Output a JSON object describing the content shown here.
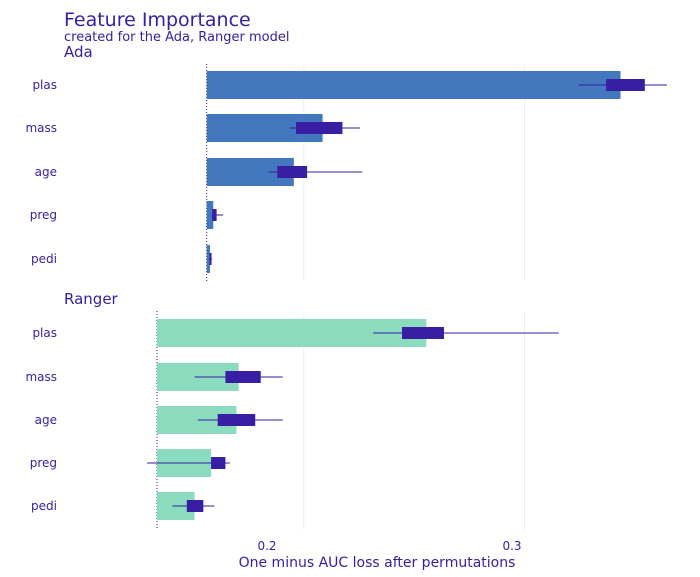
{
  "chart_data": {
    "type": "bar",
    "title": "Feature Importance",
    "subtitle": "created for the Ada, Ranger model",
    "xlabel": "One minus AUC loss after permutations",
    "x_ticks": [
      "0.2",
      "0.3"
    ],
    "grid": true,
    "bar_orientation": "horizontal",
    "categories": [
      "plas",
      "mass",
      "age",
      "preg",
      "pedi"
    ],
    "panels": [
      {
        "name": "Ada",
        "color": "#4378bf",
        "baseline": 0.156,
        "xlim": [
          0.095,
          0.365
        ],
        "values": [
          0.3435,
          0.2085,
          0.1955,
          0.159,
          0.1575
        ],
        "box_low": [
          0.337,
          0.1965,
          0.188,
          0.1585,
          0.1573
        ],
        "box_high": [
          0.3545,
          0.2175,
          0.2015,
          0.1605,
          0.1582
        ],
        "whisker_low": [
          0.3245,
          0.1935,
          0.184,
          0.1585,
          0.157
        ],
        "whisker_high": [
          0.3645,
          0.2255,
          0.2265,
          0.1635,
          0.1585
        ]
      },
      {
        "name": "Ranger",
        "color": "#8bdcbe",
        "baseline": 0.1335,
        "xlim": [
          0.095,
          0.365
        ],
        "values": [
          0.2555,
          0.1705,
          0.1695,
          0.158,
          0.1505
        ],
        "box_low": [
          0.2445,
          0.1645,
          0.161,
          0.158,
          0.147
        ],
        "box_high": [
          0.2635,
          0.1805,
          0.178,
          0.1645,
          0.1545
        ],
        "whisker_low": [
          0.2315,
          0.1505,
          0.152,
          0.129,
          0.1405
        ],
        "whisker_high": [
          0.3155,
          0.1905,
          0.1905,
          0.1665,
          0.1595
        ]
      }
    ]
  },
  "colors": {
    "text": "#371ea3",
    "box": "#371ea3",
    "grid": "#f0f0f4"
  }
}
